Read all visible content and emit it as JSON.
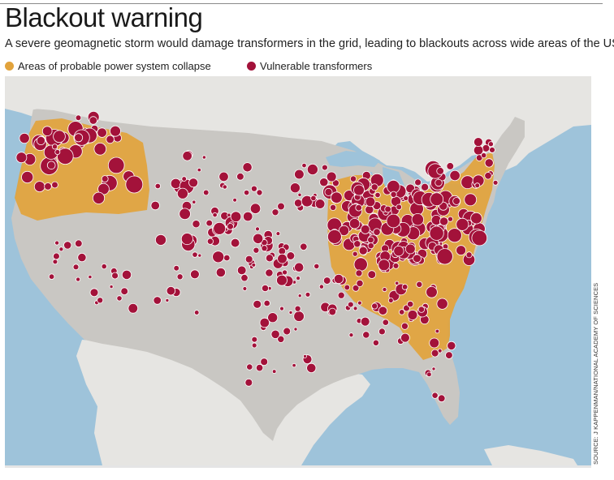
{
  "title": "Blackout warning",
  "subtitle": "A severe geomagnetic storm would damage transformers in the grid, leading to blackouts across wide areas of the US",
  "legend": {
    "collapse": {
      "label": "Areas of probable power system collapse",
      "color": "#e2a33c"
    },
    "transformers": {
      "label": "Vulnerable transformers",
      "color": "#a3123a"
    }
  },
  "source": "SOURCE: J KAPPENMAN/NATIONAL ACADEMY OF SCIENCES",
  "colors": {
    "water": "#9ec3da",
    "land_us": "#c9c7c3",
    "land_other": "#e6e5e2",
    "collapse": "#e2a33c",
    "transformer": "#a3123a",
    "transformer_outline": "#ffffff"
  }
}
